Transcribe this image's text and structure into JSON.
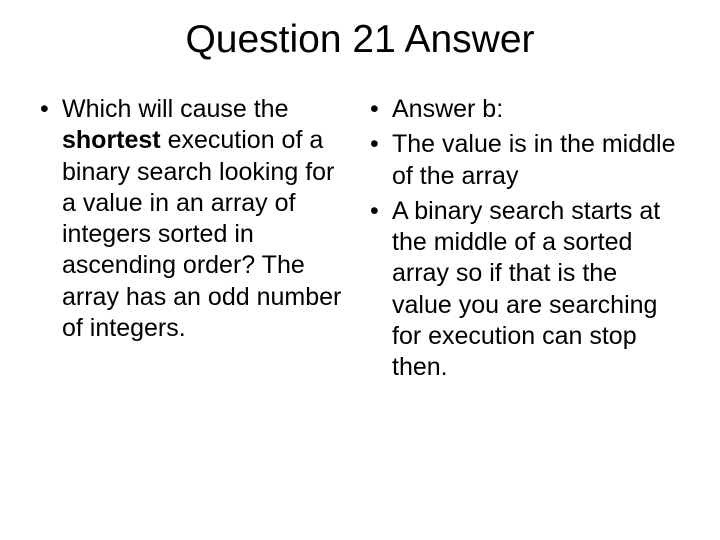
{
  "title": "Question 21 Answer",
  "leftColumn": {
    "items": [
      {
        "prefix": "Which will cause the ",
        "bold": "shortest",
        "suffix": " execution of a binary search looking for a value in an array of integers sorted in ascending order?  The array has an odd number of integers."
      }
    ]
  },
  "rightColumn": {
    "items": [
      {
        "text": "Answer b:"
      },
      {
        "text": "The value is in the middle of the array"
      },
      {
        "text": "A binary search starts at the middle of a sorted array so if that is the value you are searching for execution can stop then."
      }
    ]
  },
  "style": {
    "background": "#ffffff",
    "textColor": "#000000",
    "titleFontSize": 39,
    "bodyFontSize": 25,
    "bulletChar": "•"
  }
}
